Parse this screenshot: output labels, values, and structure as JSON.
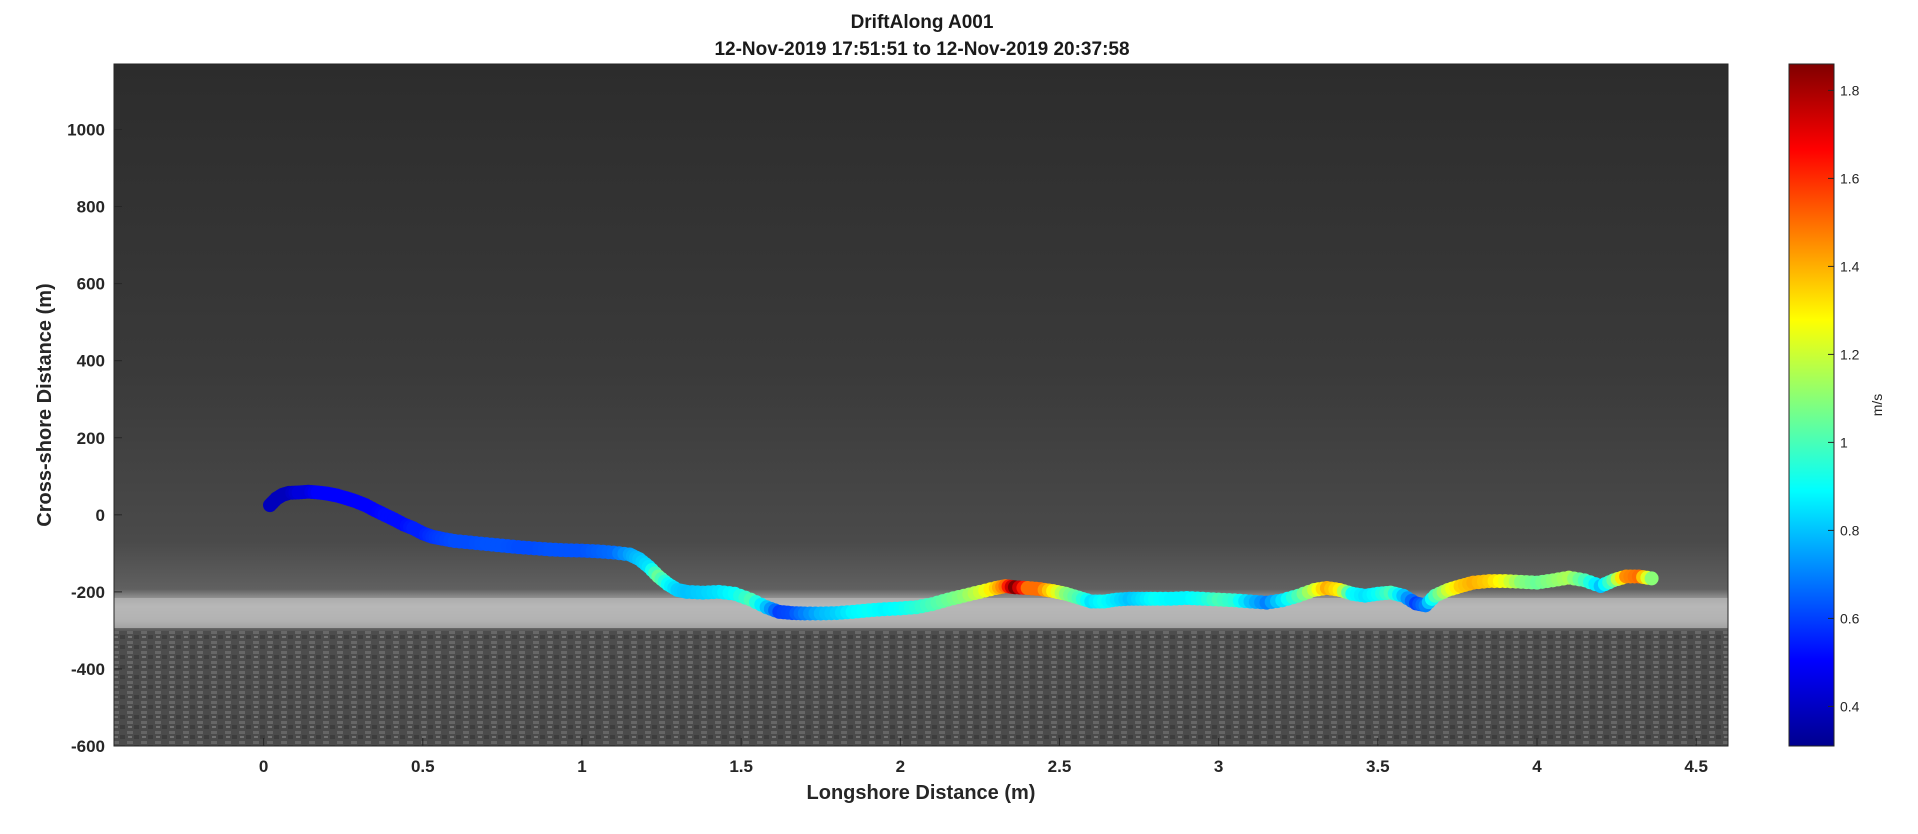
{
  "chart_data": {
    "type": "scatter",
    "title": "DriftAlong A001",
    "subtitle": "12-Nov-2019 17:51:51 to 12-Nov-2019 20:37:58",
    "xlabel": "Longshore Distance (m)",
    "ylabel": "Cross-shore Distance (m)",
    "xlim": [
      -0.47,
      4.6
    ],
    "ylim": [
      -600,
      1170
    ],
    "xticks": [
      0,
      0.5,
      1,
      1.5,
      2,
      2.5,
      3,
      3.5,
      4,
      4.5
    ],
    "xtick_labels": [
      "0",
      "0.5",
      "1",
      "1.5",
      "2",
      "2.5",
      "3",
      "3.5",
      "4",
      "4.5"
    ],
    "yticks": [
      -600,
      -400,
      -200,
      0,
      200,
      400,
      600,
      800,
      1000
    ],
    "ytick_labels": [
      "-600",
      "-400",
      "-200",
      "0",
      "200",
      "400",
      "600",
      "800",
      "1000"
    ],
    "background": "grayscale aerial image (dark water above, bright shoreline near y=-300, textured land below)",
    "grid": false,
    "colormap": "jet",
    "colorbar": {
      "label": "m/s",
      "clim": [
        0.31,
        1.86
      ],
      "ticks": [
        0.4,
        0.6,
        0.8,
        1,
        1.2,
        1.4,
        1.6,
        1.8
      ],
      "tick_labels": [
        "0.4",
        "0.6",
        "0.8",
        "1",
        "1.2",
        "1.4",
        "1.6",
        "1.8"
      ]
    },
    "series": [
      {
        "x": [
          0.02,
          0.04,
          0.06,
          0.08,
          0.11,
          0.14,
          0.17,
          0.2,
          0.23,
          0.26,
          0.29,
          0.32,
          0.35,
          0.38,
          0.41,
          0.44,
          0.47,
          0.5,
          0.53,
          0.56,
          0.6,
          0.65,
          0.7,
          0.75,
          0.8,
          0.85,
          0.9,
          0.95,
          1.0,
          1.05,
          1.1,
          1.15,
          1.18,
          1.21,
          1.24,
          1.27,
          1.3,
          1.33,
          1.38,
          1.43,
          1.48,
          1.53,
          1.58,
          1.62,
          1.66,
          1.7,
          1.75,
          1.8,
          1.85,
          1.9,
          1.95,
          2.0,
          2.05,
          2.1,
          2.15,
          2.2,
          2.25,
          2.3,
          2.33,
          2.36,
          2.4,
          2.44,
          2.48,
          2.52,
          2.56,
          2.6,
          2.64,
          2.68,
          2.72,
          2.76,
          2.8,
          2.85,
          2.9,
          2.95,
          3.0,
          3.05,
          3.1,
          3.15,
          3.2,
          3.25,
          3.3,
          3.34,
          3.38,
          3.42,
          3.46,
          3.5,
          3.54,
          3.58,
          3.62,
          3.65,
          3.68,
          3.72,
          3.76,
          3.8,
          3.85,
          3.9,
          3.95,
          4.0,
          4.05,
          4.1,
          4.15,
          4.2,
          4.24,
          4.28,
          4.32,
          4.36
        ],
        "y": [
          25,
          42,
          52,
          57,
          58,
          60,
          58,
          55,
          50,
          43,
          35,
          25,
          12,
          0,
          -12,
          -25,
          -35,
          -48,
          -57,
          -62,
          -68,
          -72,
          -76,
          -80,
          -84,
          -87,
          -90,
          -92,
          -93,
          -95,
          -98,
          -103,
          -115,
          -135,
          -160,
          -180,
          -195,
          -200,
          -202,
          -200,
          -205,
          -220,
          -240,
          -252,
          -255,
          -256,
          -256,
          -255,
          -252,
          -248,
          -245,
          -243,
          -240,
          -232,
          -220,
          -210,
          -200,
          -190,
          -185,
          -188,
          -190,
          -193,
          -198,
          -205,
          -215,
          -225,
          -225,
          -220,
          -218,
          -218,
          -218,
          -218,
          -216,
          -218,
          -220,
          -222,
          -225,
          -228,
          -222,
          -210,
          -195,
          -190,
          -195,
          -205,
          -210,
          -205,
          -202,
          -210,
          -230,
          -235,
          -210,
          -195,
          -185,
          -176,
          -172,
          -172,
          -174,
          -176,
          -170,
          -163,
          -170,
          -185,
          -170,
          -160,
          -160,
          -165
        ],
        "v": [
          0.4,
          0.4,
          0.4,
          0.4,
          0.45,
          0.45,
          0.5,
          0.5,
          0.5,
          0.5,
          0.5,
          0.5,
          0.5,
          0.52,
          0.52,
          0.52,
          0.55,
          0.55,
          0.58,
          0.6,
          0.62,
          0.62,
          0.63,
          0.63,
          0.62,
          0.62,
          0.63,
          0.63,
          0.63,
          0.65,
          0.67,
          0.75,
          0.8,
          0.85,
          1.05,
          0.9,
          0.82,
          0.8,
          0.82,
          0.85,
          0.9,
          1.0,
          0.8,
          0.6,
          0.62,
          0.7,
          0.78,
          0.82,
          0.88,
          0.9,
          0.88,
          0.9,
          0.95,
          1.0,
          1.05,
          1.1,
          1.2,
          1.35,
          1.5,
          1.86,
          1.5,
          1.5,
          1.3,
          1.1,
          1.0,
          0.85,
          0.9,
          0.85,
          0.8,
          0.85,
          0.9,
          0.88,
          0.88,
          0.92,
          1.0,
          0.95,
          0.8,
          0.7,
          0.85,
          1.0,
          1.2,
          1.4,
          1.3,
          0.9,
          0.85,
          0.9,
          1.0,
          0.8,
          0.6,
          0.7,
          1.0,
          1.2,
          1.35,
          1.4,
          1.35,
          1.25,
          1.1,
          1.05,
          1.1,
          1.15,
          1.0,
          0.8,
          1.05,
          1.45,
          1.5,
          1.1
        ]
      }
    ]
  }
}
